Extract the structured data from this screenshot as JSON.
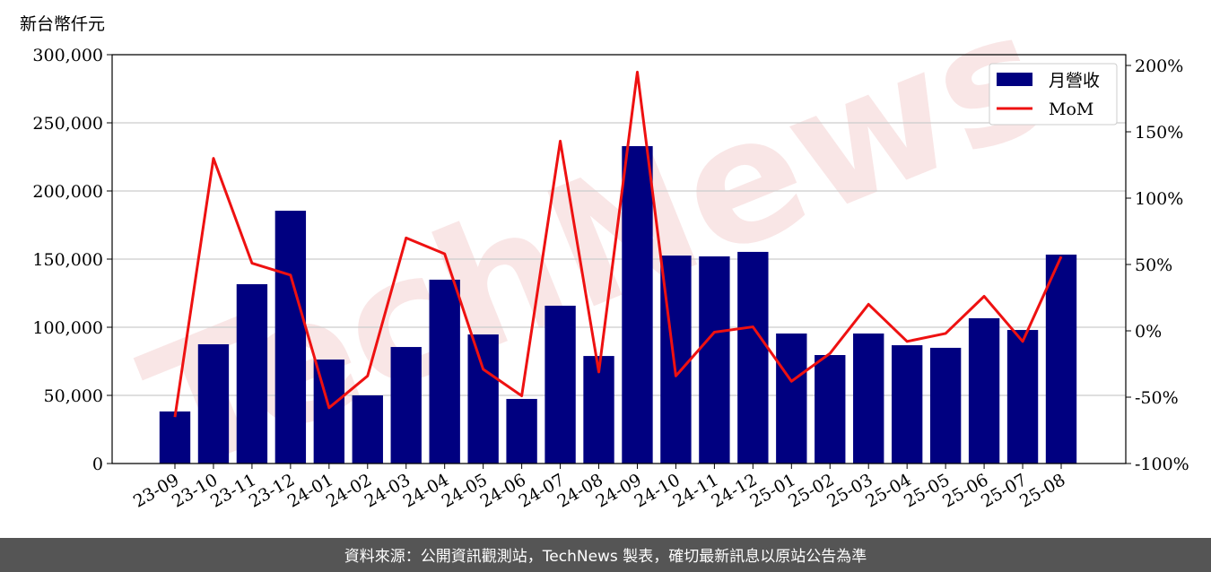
{
  "chart_data": {
    "type": "bar_line",
    "y_label": "新台幣仟元",
    "watermark": "TechNews",
    "footer": "資料來源：公開資訊觀測站，TechNews 製表，確切最新訊息以原站公告為準",
    "categories": [
      "23-09",
      "23-10",
      "23-11",
      "23-12",
      "24-01",
      "24-02",
      "24-03",
      "24-04",
      "24-05",
      "24-06",
      "24-07",
      "24-08",
      "24-09",
      "24-10",
      "24-11",
      "24-12",
      "25-01",
      "25-02",
      "25-03",
      "25-04",
      "25-05",
      "25-06",
      "25-07",
      "25-08"
    ],
    "series": [
      {
        "name": "月營收",
        "type": "bar",
        "color": "#000080",
        "values": [
          38200,
          87500,
          131600,
          185500,
          76300,
          50000,
          85500,
          134900,
          94700,
          47400,
          115800,
          78900,
          232900,
          152600,
          152000,
          155300,
          95400,
          79600,
          95400,
          86800,
          84900,
          106600,
          98000,
          153300
        ]
      },
      {
        "name": "MoM",
        "type": "line",
        "axis": "y2",
        "color": "#ee1111",
        "values": [
          -65,
          130,
          51,
          42,
          -58,
          -34,
          70,
          58,
          -29,
          -49,
          143,
          -31,
          195,
          -34,
          -1,
          3,
          -38,
          -17,
          20,
          -8,
          -2,
          26,
          -8,
          56
        ]
      }
    ],
    "ylim": [
      0,
      300000
    ],
    "yticks": [
      0,
      {
        "value": 50000,
        "label": "50,000"
      },
      {
        "value": 100000,
        "label": "100,000"
      },
      {
        "value": 150000,
        "label": "150,000"
      },
      {
        "value": 200000,
        "label": "200,000"
      },
      {
        "value": 250000,
        "label": "250,000"
      },
      {
        "value": 300000,
        "label": "300,000"
      }
    ],
    "y2lim": [
      -100,
      208.1
    ],
    "y2ticks": [
      {
        "value": -100,
        "label": "-100%"
      },
      {
        "value": -50,
        "label": "-50%"
      },
      {
        "value": 0,
        "label": "0%"
      },
      {
        "value": 50,
        "label": "50%"
      },
      {
        "value": 100,
        "label": "100%"
      },
      {
        "value": 150,
        "label": "150%"
      },
      {
        "value": 200,
        "label": "200%"
      }
    ],
    "grid": true,
    "legend": "upper-right"
  }
}
